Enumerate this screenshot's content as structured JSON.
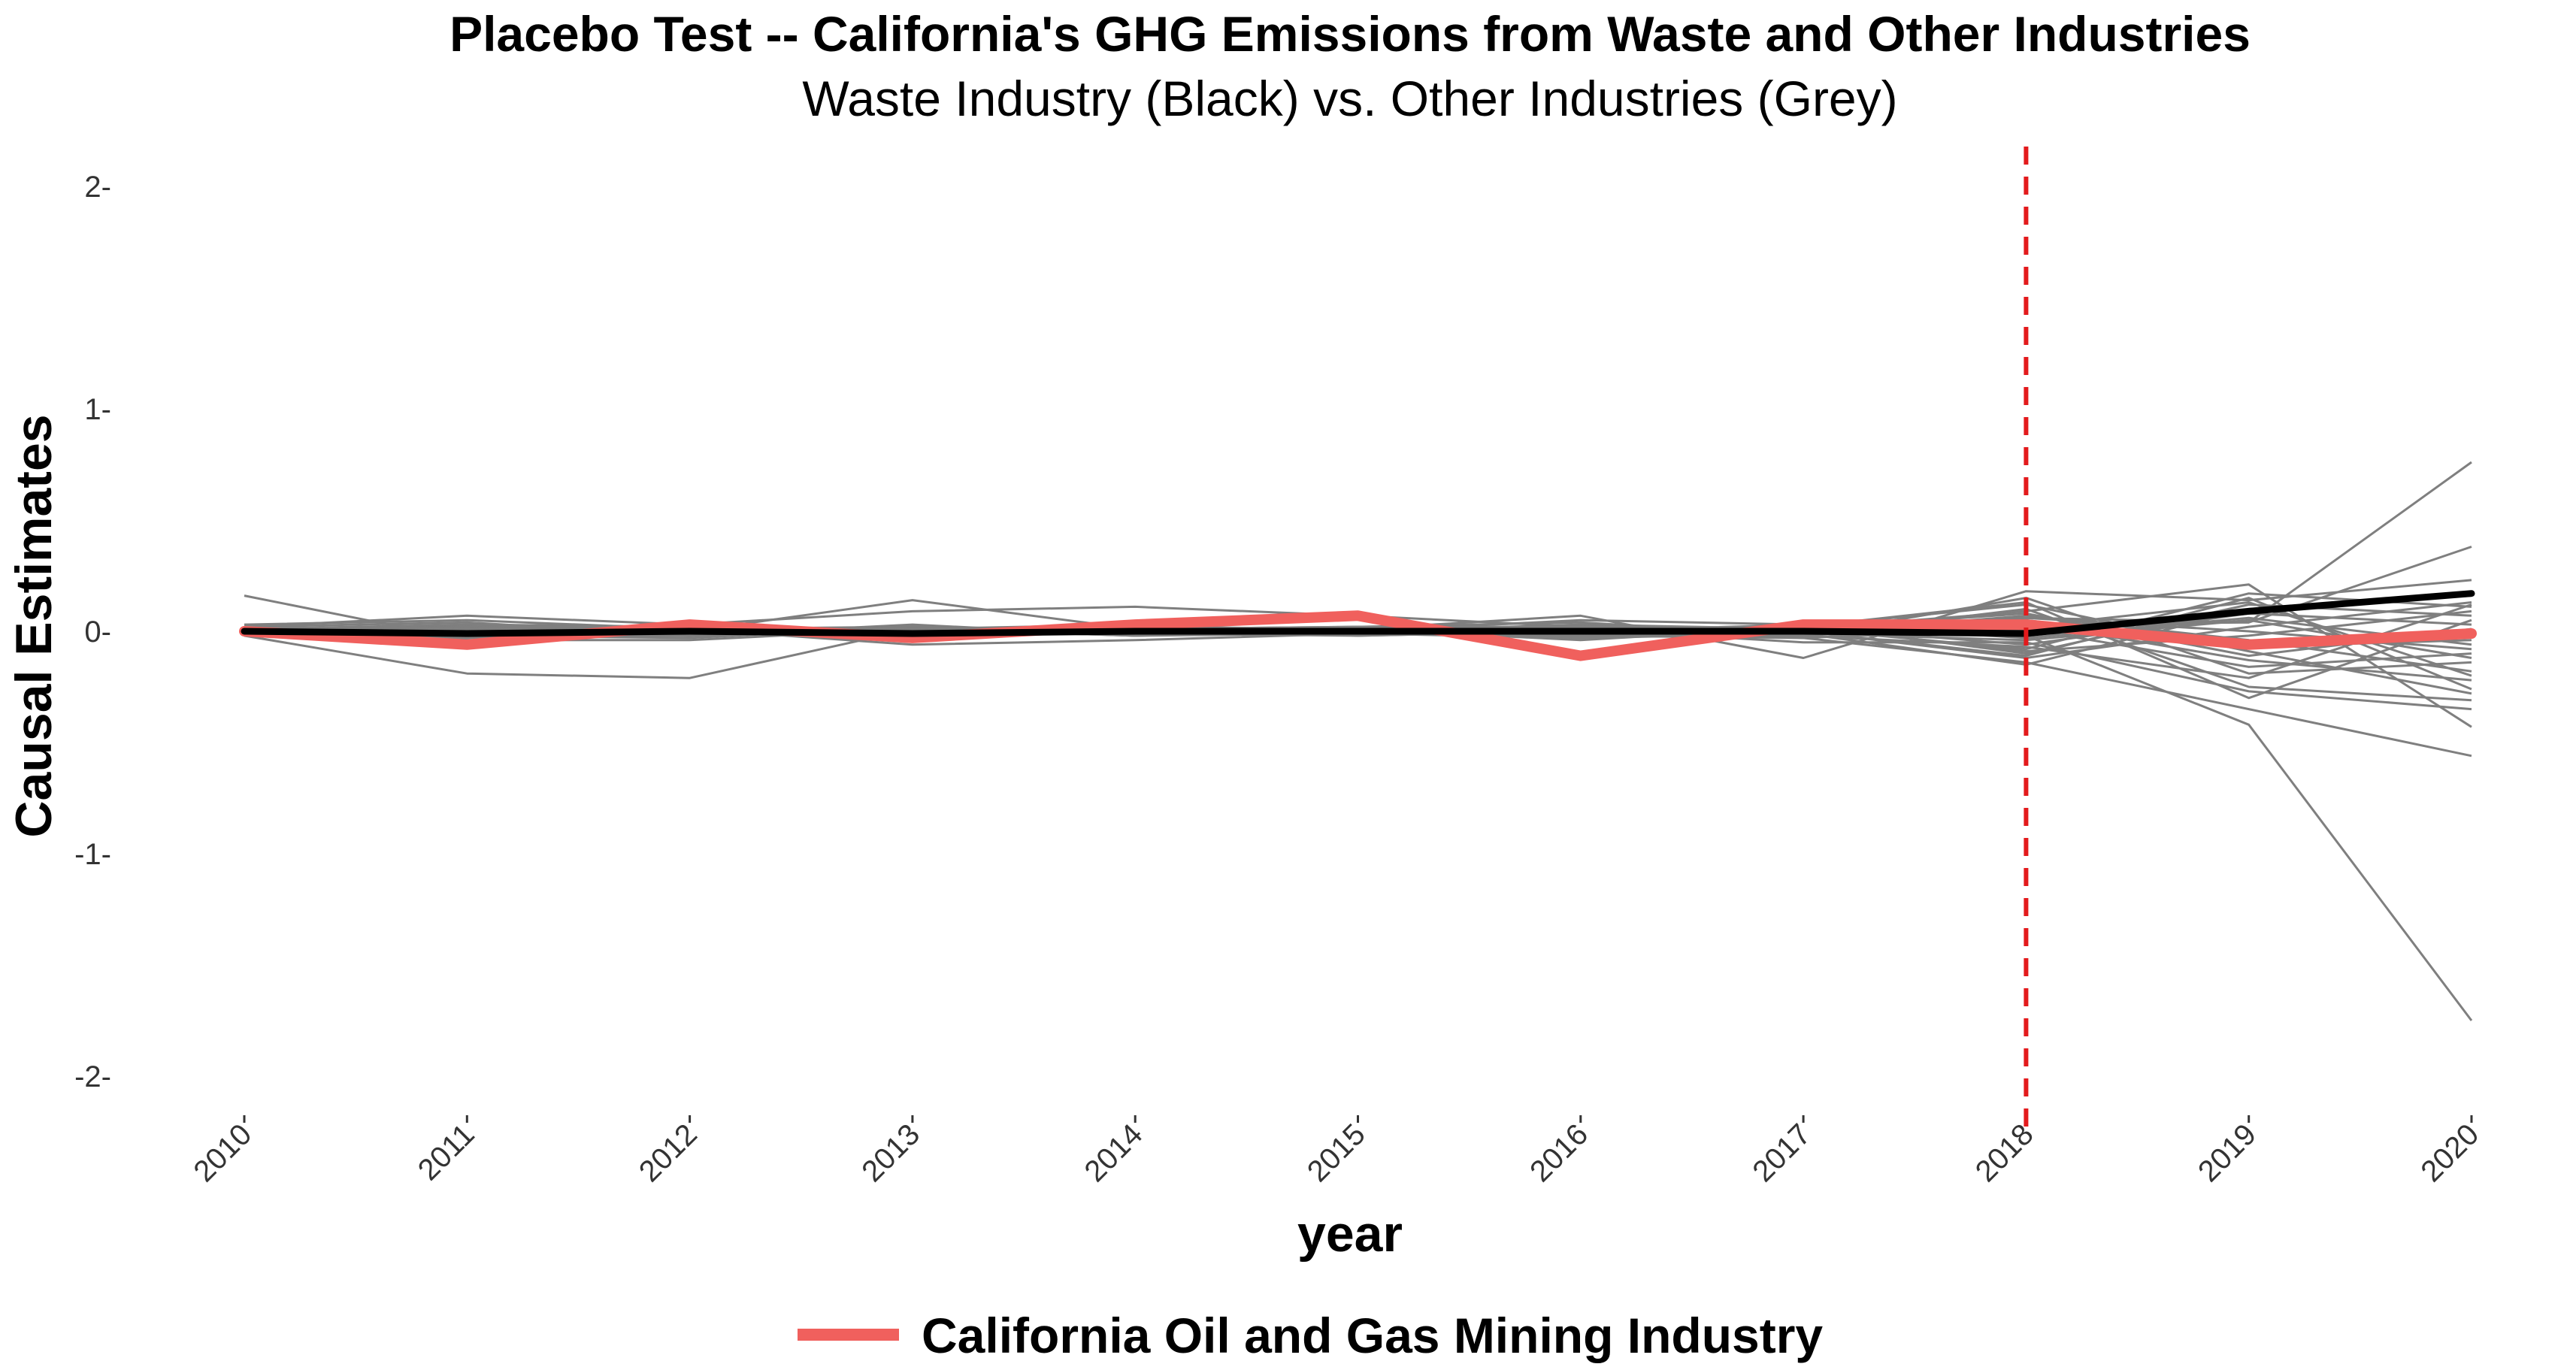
{
  "chart_data": {
    "type": "line",
    "title": "Placebo Test -- California's GHG Emissions from Waste and Other Industries",
    "subtitle": "Waste Industry (Black) vs. Other Industries (Grey)",
    "xlabel": "year",
    "ylabel": "Causal Estimates",
    "x": [
      2010,
      2011,
      2012,
      2013,
      2014,
      2015,
      2016,
      2017,
      2018,
      2019,
      2020
    ],
    "x_tick_labels": [
      "2010",
      "2011",
      "2012",
      "2013",
      "2014",
      "2015",
      "2016",
      "2017",
      "2018",
      "2019",
      "2020"
    ],
    "ylim": [
      -2.2,
      2.2
    ],
    "y_ticks": [
      -2,
      -1,
      0,
      1,
      2
    ],
    "y_tick_labels": [
      "-2-",
      "-1-",
      "0-",
      "1-",
      "2-"
    ],
    "grid": false,
    "legend_position": "bottom",
    "legend_entries": [
      "California Oil and Gas Mining Industry"
    ],
    "vline": {
      "x": 2018,
      "color": "#e31a1c",
      "style": "dashed"
    },
    "colors": {
      "waste": "#000000",
      "placebo": "#7f7f7f",
      "highlight": "#f0605d",
      "treatment_line": "#e31a1c"
    },
    "waste_series": [
      0.0,
      -0.01,
      0.0,
      -0.01,
      0.0,
      0.0,
      0.0,
      0.0,
      -0.01,
      0.09,
      0.17
    ],
    "highlight_series": {
      "name": "California Oil and Gas Mining Industry",
      "values": [
        0.0,
        -0.06,
        0.03,
        -0.03,
        0.03,
        0.07,
        -0.11,
        0.03,
        0.03,
        -0.06,
        -0.01
      ]
    },
    "placebo_series": [
      [
        0.16,
        -0.04,
        -0.04,
        0.01,
        0.0,
        0.01,
        0.02,
        0.01,
        0.03,
        0.04,
        0.76
      ],
      [
        -0.02,
        -0.19,
        -0.21,
        0.01,
        0.0,
        0.01,
        0.0,
        0.0,
        -0.02,
        -0.42,
        -1.75
      ],
      [
        0.02,
        0.07,
        0.03,
        0.09,
        0.11,
        0.07,
        0.02,
        0.0,
        0.06,
        0.04,
        0.38
      ],
      [
        0.01,
        0.02,
        0.0,
        0.14,
        0.01,
        0.01,
        0.07,
        -0.12,
        0.18,
        0.14,
        0.23
      ],
      [
        0.03,
        0.05,
        0.01,
        -0.06,
        -0.04,
        -0.01,
        0.02,
        -0.03,
        -0.14,
        -0.35,
        -0.56
      ],
      [
        0.0,
        0.03,
        0.01,
        0.01,
        0.0,
        -0.01,
        0.03,
        0.01,
        0.09,
        0.21,
        -0.43
      ],
      [
        -0.01,
        -0.03,
        0.02,
        -0.02,
        0.01,
        0.02,
        0.01,
        -0.05,
        -0.05,
        -0.27,
        -0.35
      ],
      [
        0.02,
        0.04,
        -0.02,
        0.03,
        -0.02,
        0.01,
        -0.04,
        0.02,
        0.12,
        -0.09,
        -0.28
      ],
      [
        0.01,
        -0.01,
        0.02,
        0.01,
        0.03,
        -0.01,
        -0.03,
        0.01,
        -0.08,
        0.17,
        0.11
      ],
      [
        -0.02,
        0.02,
        0.0,
        -0.03,
        0.0,
        0.02,
        0.04,
        -0.02,
        0.15,
        -0.19,
        -0.14
      ],
      [
        0.0,
        -0.02,
        -0.03,
        0.02,
        -0.01,
        0.0,
        0.05,
        0.03,
        -0.1,
        0.12,
        0.07
      ],
      [
        0.01,
        0.03,
        0.02,
        -0.01,
        0.02,
        0.01,
        -0.02,
        0.0,
        0.04,
        -0.13,
        -0.22
      ],
      [
        -0.01,
        0.0,
        0.01,
        0.02,
        -0.02,
        -0.01,
        0.01,
        0.02,
        -0.06,
        0.08,
        0.03
      ],
      [
        0.02,
        -0.03,
        -0.01,
        -0.02,
        0.01,
        0.02,
        -0.03,
        -0.01,
        0.07,
        -0.04,
        -0.18
      ],
      [
        0.0,
        0.01,
        0.0,
        0.01,
        0.0,
        0.0,
        0.02,
        0.0,
        -0.12,
        0.02,
        0.13
      ],
      [
        -0.02,
        -0.02,
        0.02,
        -0.01,
        0.01,
        0.01,
        -0.01,
        -0.02,
        0.1,
        -0.25,
        -0.31
      ],
      [
        0.01,
        0.02,
        -0.02,
        0.02,
        -0.01,
        -0.02,
        0.0,
        0.03,
        -0.03,
        0.06,
        -0.06
      ],
      [
        0.0,
        -0.01,
        0.01,
        0.0,
        0.02,
        0.01,
        -0.02,
        0.01,
        0.01,
        -0.16,
        -0.1
      ],
      [
        -0.01,
        0.01,
        0.0,
        -0.02,
        0.0,
        0.0,
        0.03,
        -0.01,
        -0.15,
        0.1,
        0.16
      ],
      [
        0.02,
        0.0,
        -0.01,
        0.01,
        -0.02,
        0.02,
        -0.01,
        0.0,
        0.05,
        -0.07,
        -0.04
      ],
      [
        0.0,
        0.02,
        0.02,
        -0.01,
        0.01,
        -0.01,
        0.01,
        0.02,
        -0.09,
        -0.02,
        0.09
      ],
      [
        0.01,
        -0.02,
        -0.02,
        0.02,
        0.0,
        0.0,
        -0.02,
        -0.03,
        0.02,
        0.13,
        -0.2
      ],
      [
        -0.02,
        0.01,
        0.01,
        0.0,
        -0.01,
        0.02,
        0.02,
        0.01,
        0.08,
        -0.11,
        0.01
      ],
      [
        0.01,
        0.0,
        0.0,
        0.01,
        0.02,
        -0.02,
        0.0,
        -0.01,
        -0.04,
        0.05,
        -0.12
      ],
      [
        0.0,
        -0.01,
        0.02,
        -0.02,
        0.0,
        0.01,
        -0.03,
        0.02,
        0.13,
        -0.3,
        0.05
      ],
      [
        -0.01,
        0.02,
        -0.01,
        0.01,
        -0.02,
        0.0,
        0.02,
        0.0,
        -0.11,
        0.15,
        -0.26
      ],
      [
        0.02,
        -0.01,
        0.0,
        0.0,
        0.01,
        0.01,
        0.01,
        0.01,
        0.06,
        0.0,
        -0.08
      ],
      [
        0.0,
        0.01,
        -0.02,
        0.02,
        0.0,
        -0.01,
        -0.01,
        -0.02,
        -0.07,
        -0.21,
        0.12
      ]
    ]
  }
}
